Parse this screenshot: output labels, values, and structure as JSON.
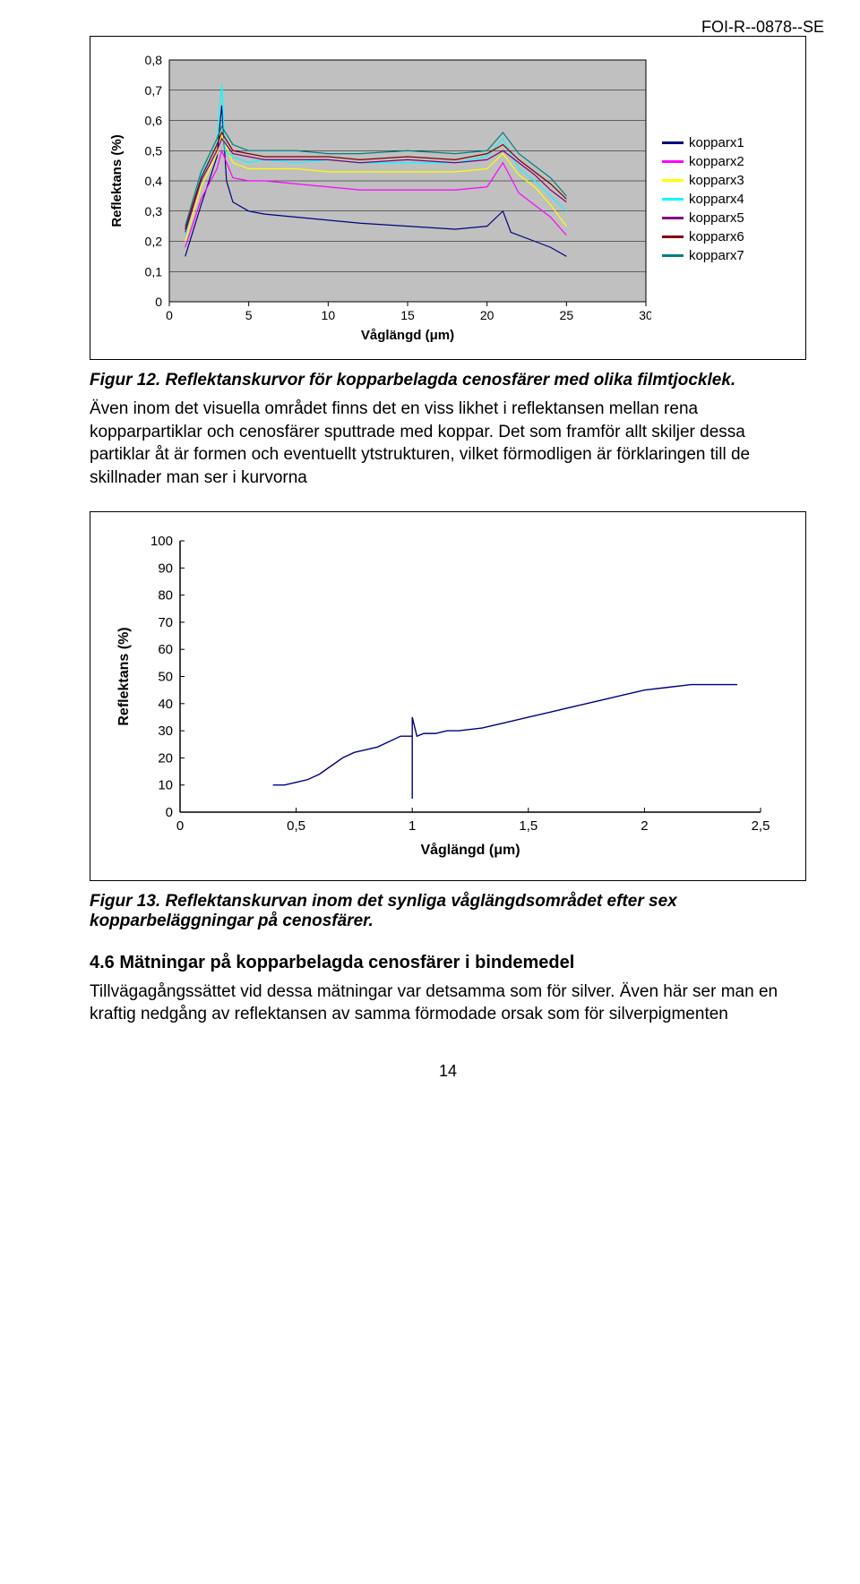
{
  "header": {
    "doc_id": "FOI-R--0878--SE"
  },
  "chart1": {
    "type": "line",
    "xlabel": "Våglängd (μm)",
    "ylabel": "Reflektans (%)",
    "x_ticks": [
      0,
      5,
      10,
      15,
      20,
      25,
      30
    ],
    "y_ticks": [
      0,
      0.1,
      0.2,
      0.3,
      0.4,
      0.5,
      0.6,
      0.7,
      0.8
    ],
    "y_tick_labels": [
      "0",
      "0,1",
      "0,2",
      "0,3",
      "0,4",
      "0,5",
      "0,6",
      "0,7",
      "0,8"
    ],
    "xlim": [
      0,
      30
    ],
    "ylim": [
      0,
      0.8
    ],
    "background_color": "#ffffff",
    "plot_bg": "#c0c0c0",
    "grid_color": "#000000",
    "axis_fontsize": 14,
    "ylabel_fontsize": 15,
    "xlabel_fontsize": 15,
    "legend_fontsize": 15,
    "line_width": 1.2,
    "series": [
      {
        "name": "kopparx1",
        "color": "#000080",
        "data": [
          [
            1,
            0.15
          ],
          [
            2,
            0.32
          ],
          [
            3,
            0.48
          ],
          [
            3.3,
            0.65
          ],
          [
            3.6,
            0.4
          ],
          [
            4,
            0.33
          ],
          [
            5,
            0.3
          ],
          [
            6,
            0.29
          ],
          [
            8,
            0.28
          ],
          [
            10,
            0.27
          ],
          [
            12,
            0.26
          ],
          [
            15,
            0.25
          ],
          [
            18,
            0.24
          ],
          [
            20,
            0.25
          ],
          [
            21,
            0.3
          ],
          [
            21.5,
            0.23
          ],
          [
            23,
            0.2
          ],
          [
            24,
            0.18
          ],
          [
            25,
            0.15
          ]
        ]
      },
      {
        "name": "kopparx2",
        "color": "#ff00ff",
        "data": [
          [
            1,
            0.18
          ],
          [
            2,
            0.34
          ],
          [
            3,
            0.44
          ],
          [
            3.3,
            0.5
          ],
          [
            4,
            0.41
          ],
          [
            5,
            0.4
          ],
          [
            6,
            0.4
          ],
          [
            8,
            0.39
          ],
          [
            10,
            0.38
          ],
          [
            12,
            0.37
          ],
          [
            15,
            0.37
          ],
          [
            18,
            0.37
          ],
          [
            20,
            0.38
          ],
          [
            21,
            0.46
          ],
          [
            22,
            0.36
          ],
          [
            23,
            0.32
          ],
          [
            24,
            0.28
          ],
          [
            25,
            0.22
          ]
        ]
      },
      {
        "name": "kopparx3",
        "color": "#ffff00",
        "data": [
          [
            1,
            0.2
          ],
          [
            2,
            0.38
          ],
          [
            3,
            0.49
          ],
          [
            3.3,
            0.55
          ],
          [
            4,
            0.46
          ],
          [
            5,
            0.44
          ],
          [
            6,
            0.44
          ],
          [
            8,
            0.44
          ],
          [
            10,
            0.43
          ],
          [
            12,
            0.43
          ],
          [
            15,
            0.43
          ],
          [
            18,
            0.43
          ],
          [
            20,
            0.44
          ],
          [
            21,
            0.49
          ],
          [
            22,
            0.42
          ],
          [
            23,
            0.38
          ],
          [
            24,
            0.32
          ],
          [
            25,
            0.25
          ]
        ]
      },
      {
        "name": "kopparx4",
        "color": "#00ffff",
        "data": [
          [
            1,
            0.22
          ],
          [
            2,
            0.42
          ],
          [
            3,
            0.52
          ],
          [
            3.3,
            0.72
          ],
          [
            3.5,
            0.5
          ],
          [
            4,
            0.48
          ],
          [
            5,
            0.46
          ],
          [
            6,
            0.47
          ],
          [
            8,
            0.46
          ],
          [
            10,
            0.47
          ],
          [
            12,
            0.46
          ],
          [
            15,
            0.46
          ],
          [
            18,
            0.46
          ],
          [
            20,
            0.48
          ],
          [
            21,
            0.54
          ],
          [
            22,
            0.44
          ],
          [
            23,
            0.4
          ],
          [
            24,
            0.35
          ],
          [
            25,
            0.3
          ]
        ]
      },
      {
        "name": "kopparx5",
        "color": "#800080",
        "data": [
          [
            1,
            0.23
          ],
          [
            2,
            0.4
          ],
          [
            3,
            0.5
          ],
          [
            3.3,
            0.54
          ],
          [
            4,
            0.49
          ],
          [
            5,
            0.48
          ],
          [
            6,
            0.47
          ],
          [
            8,
            0.47
          ],
          [
            10,
            0.47
          ],
          [
            12,
            0.46
          ],
          [
            15,
            0.47
          ],
          [
            18,
            0.46
          ],
          [
            20,
            0.47
          ],
          [
            21,
            0.5
          ],
          [
            22,
            0.46
          ],
          [
            23,
            0.42
          ],
          [
            24,
            0.37
          ],
          [
            25,
            0.33
          ]
        ]
      },
      {
        "name": "kopparx6",
        "color": "#800000",
        "data": [
          [
            1,
            0.24
          ],
          [
            2,
            0.41
          ],
          [
            3,
            0.52
          ],
          [
            3.3,
            0.56
          ],
          [
            4,
            0.5
          ],
          [
            5,
            0.49
          ],
          [
            6,
            0.48
          ],
          [
            8,
            0.48
          ],
          [
            10,
            0.48
          ],
          [
            12,
            0.47
          ],
          [
            15,
            0.48
          ],
          [
            18,
            0.47
          ],
          [
            20,
            0.49
          ],
          [
            21,
            0.52
          ],
          [
            22,
            0.47
          ],
          [
            23,
            0.43
          ],
          [
            24,
            0.39
          ],
          [
            25,
            0.34
          ]
        ]
      },
      {
        "name": "kopparx7",
        "color": "#008080",
        "data": [
          [
            1,
            0.25
          ],
          [
            2,
            0.43
          ],
          [
            3,
            0.54
          ],
          [
            3.3,
            0.58
          ],
          [
            4,
            0.52
          ],
          [
            5,
            0.5
          ],
          [
            6,
            0.5
          ],
          [
            8,
            0.5
          ],
          [
            10,
            0.49
          ],
          [
            12,
            0.49
          ],
          [
            15,
            0.5
          ],
          [
            18,
            0.49
          ],
          [
            20,
            0.5
          ],
          [
            21,
            0.56
          ],
          [
            22,
            0.49
          ],
          [
            23,
            0.45
          ],
          [
            24,
            0.41
          ],
          [
            25,
            0.35
          ]
        ]
      }
    ]
  },
  "figure12": {
    "caption": "Figur 12. Reflektanskurvor för kopparbelagda cenosfärer med olika filmtjocklek.",
    "paragraph": "Även inom det visuella området finns det en viss likhet i reflektansen mellan rena kopparpartiklar och cenosfärer sputtrade med koppar. Det som framför allt skiljer dessa partiklar åt är formen och eventuellt ytstrukturen, vilket förmodligen är förklaringen till de skillnader man ser i kurvorna"
  },
  "chart2": {
    "type": "line",
    "xlabel": "Våglängd (μm)",
    "ylabel": "Reflektans (%)",
    "x_ticks": [
      0,
      0.5,
      1,
      1.5,
      2,
      2.5
    ],
    "x_tick_labels": [
      "0",
      "0,5",
      "1",
      "1,5",
      "2",
      "2,5"
    ],
    "y_ticks": [
      0,
      10,
      20,
      30,
      40,
      50,
      60,
      70,
      80,
      90,
      100
    ],
    "xlim": [
      0,
      2.5
    ],
    "ylim": [
      0,
      100
    ],
    "background_color": "#ffffff",
    "plot_bg": "#ffffff",
    "grid_color": "#000000",
    "tick_len": 5,
    "axis_fontsize": 15,
    "ylabel_fontsize": 16,
    "xlabel_fontsize": 16,
    "line_width": 1.4,
    "line_color": "#000080",
    "data": [
      [
        0.4,
        10
      ],
      [
        0.45,
        10
      ],
      [
        0.5,
        11
      ],
      [
        0.55,
        12
      ],
      [
        0.6,
        14
      ],
      [
        0.65,
        17
      ],
      [
        0.7,
        20
      ],
      [
        0.75,
        22
      ],
      [
        0.8,
        23
      ],
      [
        0.85,
        24
      ],
      [
        0.9,
        26
      ],
      [
        0.95,
        28
      ],
      [
        1.0,
        28
      ],
      [
        1.0,
        5
      ],
      [
        1.0,
        35
      ],
      [
        1.02,
        28
      ],
      [
        1.05,
        29
      ],
      [
        1.1,
        29
      ],
      [
        1.15,
        30
      ],
      [
        1.2,
        30
      ],
      [
        1.3,
        31
      ],
      [
        1.4,
        33
      ],
      [
        1.5,
        35
      ],
      [
        1.6,
        37
      ],
      [
        1.7,
        39
      ],
      [
        1.8,
        41
      ],
      [
        1.9,
        43
      ],
      [
        2.0,
        45
      ],
      [
        2.1,
        46
      ],
      [
        2.2,
        47
      ],
      [
        2.3,
        47
      ],
      [
        2.4,
        47
      ]
    ]
  },
  "figure13": {
    "caption": "Figur 13. Reflektanskurvan inom det synliga våglängdsområdet efter sex kopparbeläggningar på cenosfärer."
  },
  "section46": {
    "title": "4.6   Mätningar på kopparbelagda cenosfärer i bindemedel",
    "paragraph": "Tillvägagångssättet vid dessa mätningar var detsamma som för silver. Även här ser man en kraftig nedgång av reflektansen av samma förmodade orsak som för silverpigmenten"
  },
  "footer": {
    "page_number": "14"
  }
}
